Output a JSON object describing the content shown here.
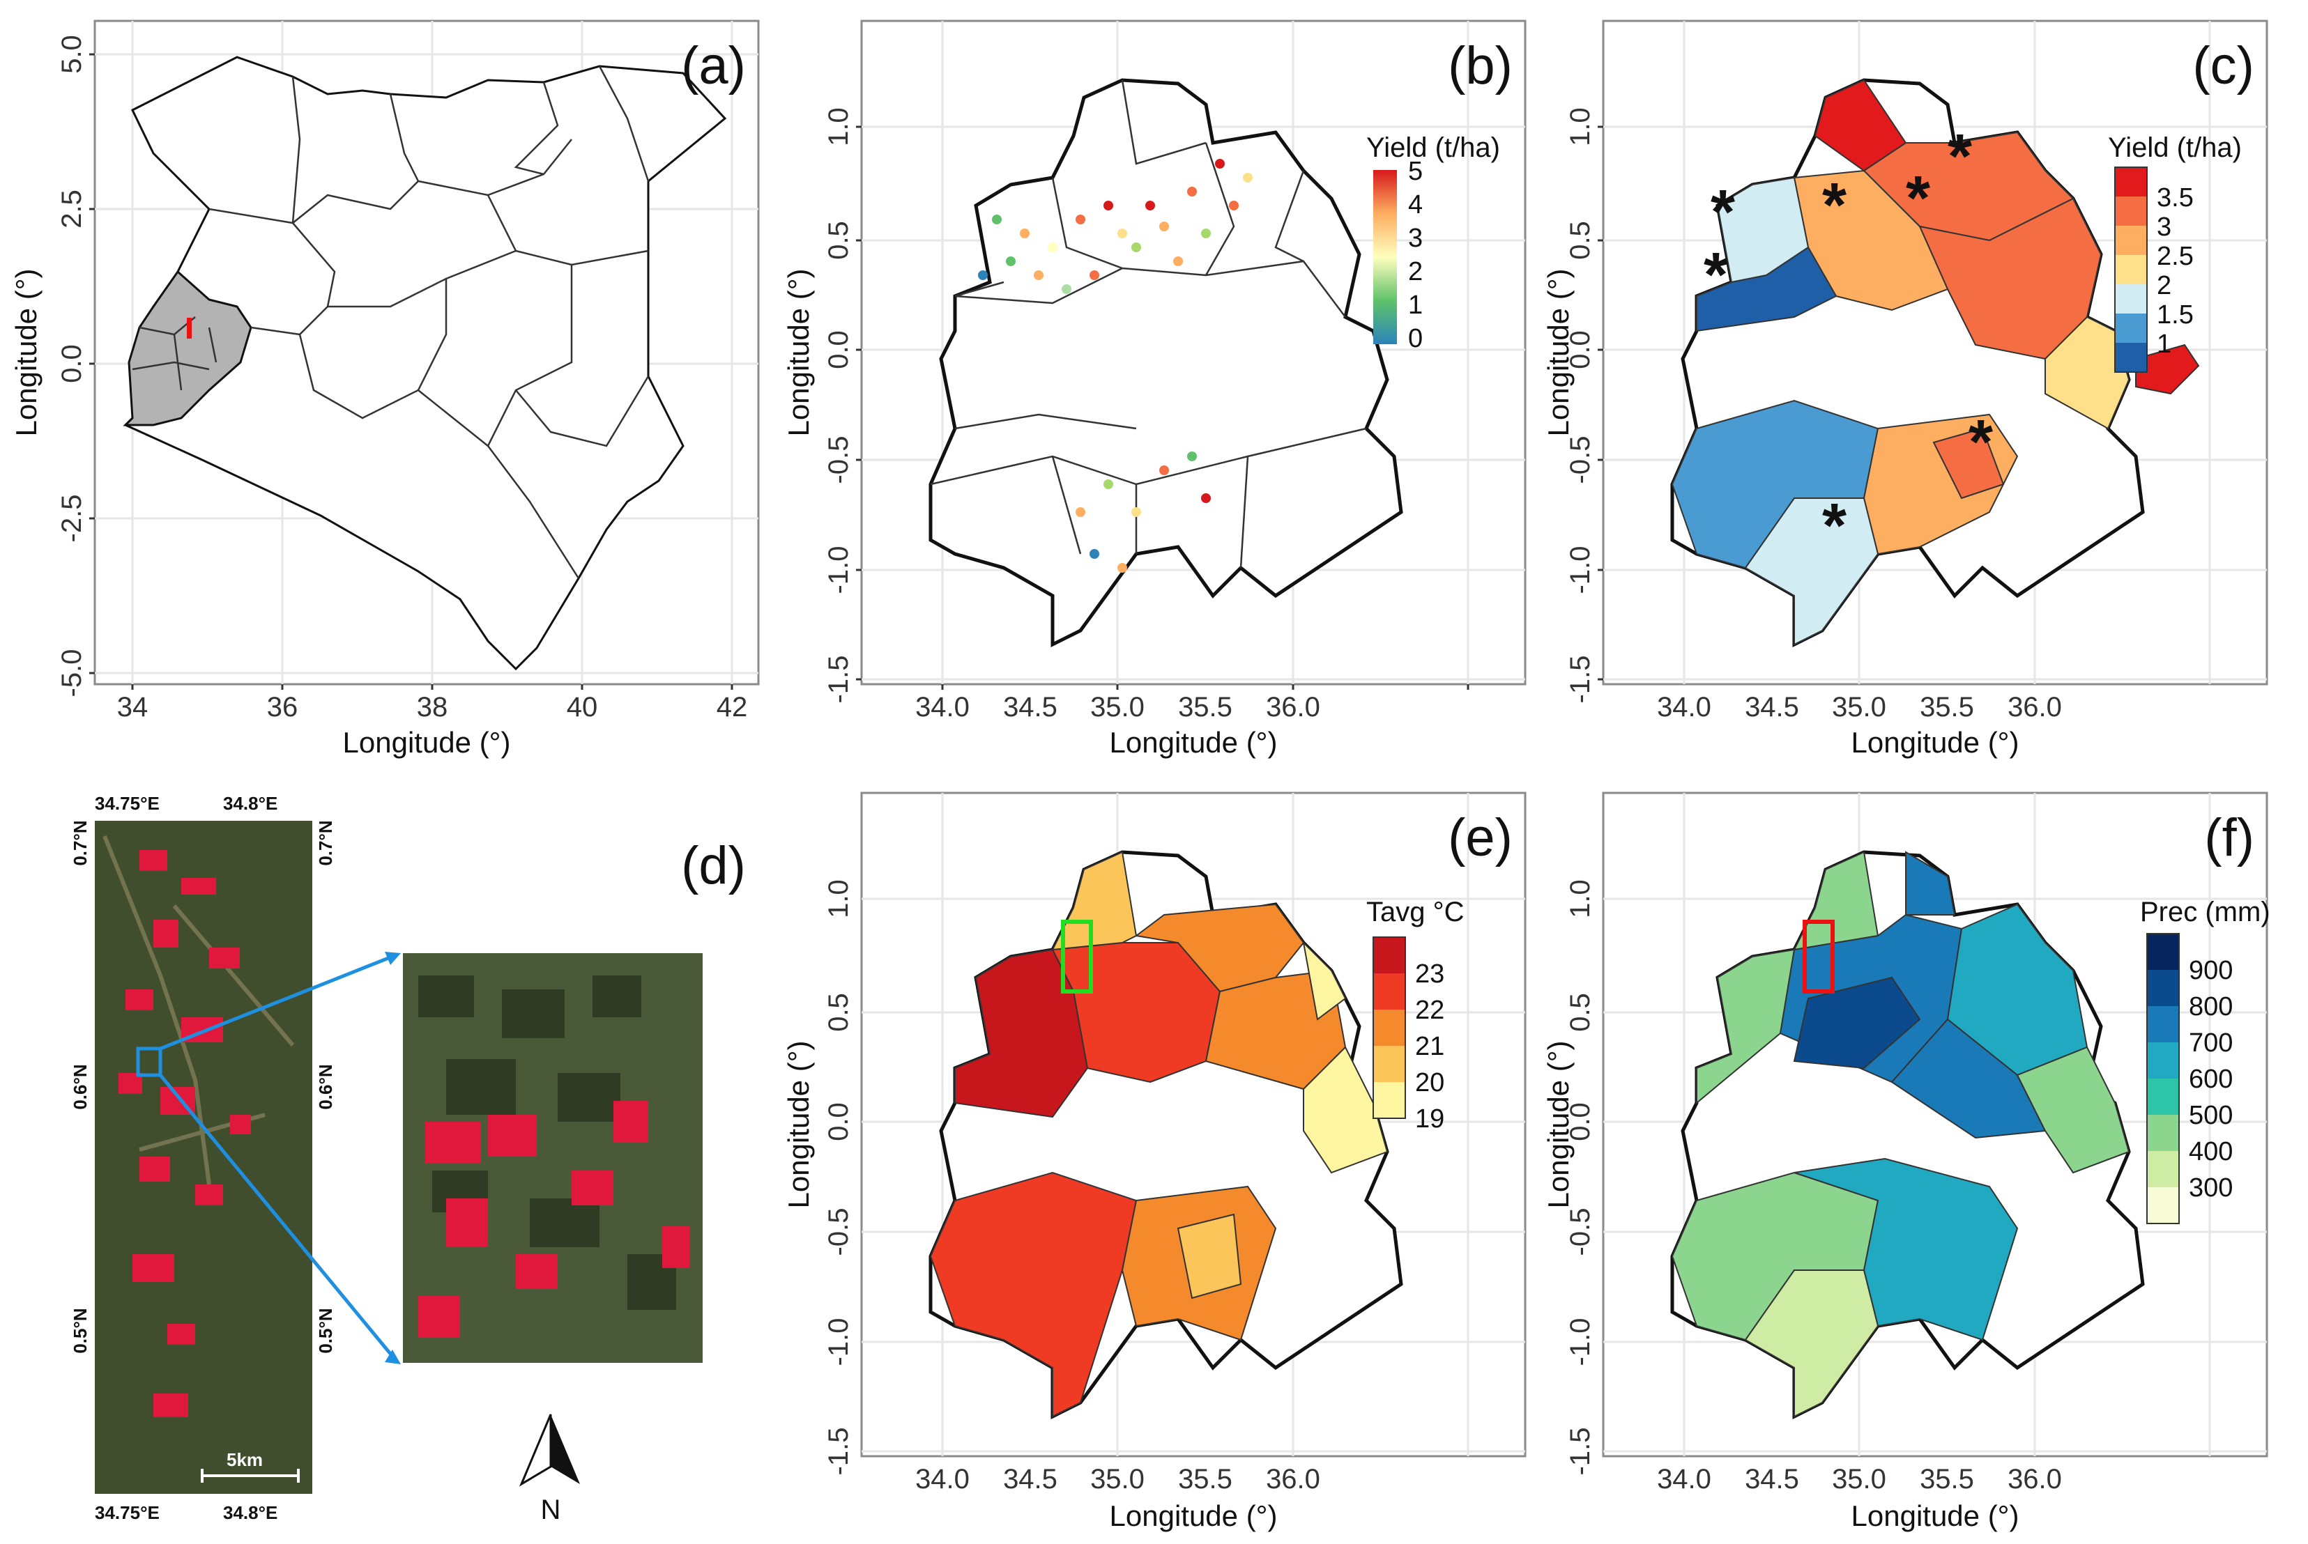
{
  "panels": {
    "a": {
      "label": "(a)",
      "xlabel": "Longitude (°)",
      "ylabel": "Longitude (°)",
      "xticks": [
        "34",
        "36",
        "38",
        "40",
        "42"
      ],
      "yticks": [
        "5.0",
        "2.5",
        "0.0",
        "-2.5",
        "-5.0"
      ]
    },
    "b": {
      "label": "(b)",
      "xlabel": "Longitude (°)",
      "ylabel": "Longitude (°)",
      "xticks": [
        "34.0",
        "34.5",
        "35.0",
        "35.5",
        "36.0"
      ],
      "yticks": [
        "1.0",
        "0.5",
        "0.0",
        "-0.5",
        "-1.0",
        "-1.5"
      ],
      "legend": {
        "title": "Yield (t/ha)",
        "labels": [
          "5",
          "4",
          "3",
          "2",
          "1",
          "0"
        ]
      }
    },
    "c": {
      "label": "(c)",
      "xlabel": "Longitude (°)",
      "ylabel": "Longitude (°)",
      "xticks": [
        "34.0",
        "34.5",
        "35.0",
        "35.5",
        "36.0"
      ],
      "yticks": [
        "1.0",
        "0.5",
        "0.0",
        "-0.5",
        "-1.0",
        "-1.5"
      ],
      "legend": {
        "title": "Yield (t/ha)",
        "labels": [
          "3.5",
          "3",
          "2.5",
          "2",
          "1.5",
          "1"
        ],
        "colors": [
          "#e31a1c",
          "#f46d43",
          "#fdae61",
          "#fee08b",
          "#d1ecf3",
          "#4a9bd1",
          "#1f5fa8"
        ]
      }
    },
    "d": {
      "label": "(d)",
      "top_labels": [
        "34.75°E",
        "34.8°E"
      ],
      "bottom_labels": [
        "34.75°E",
        "34.8°E"
      ],
      "left_labels": [
        "0.7°N",
        "0.6°N",
        "0.5°N"
      ],
      "right_labels": [
        "0.7°N",
        "0.6°N",
        "0.5°N"
      ],
      "scalebar": "5km",
      "north": "N"
    },
    "e": {
      "label": "(e)",
      "xlabel": "Longitude (°)",
      "ylabel": "Longitude (°)",
      "xticks": [
        "34.0",
        "34.5",
        "35.0",
        "35.5",
        "36.0"
      ],
      "yticks": [
        "1.0",
        "0.5",
        "0.0",
        "-0.5",
        "-1.0",
        "-1.5"
      ],
      "legend": {
        "title": "Tavg °C",
        "labels": [
          "23",
          "22",
          "21",
          "20",
          "19"
        ],
        "colors": [
          "#c8161d",
          "#ef3b24",
          "#f58a2c",
          "#fbc55a",
          "#fdf5a0"
        ]
      }
    },
    "f": {
      "label": "(f)",
      "xlabel": "Longitude (°)",
      "ylabel": "Longitude (°)",
      "xticks": [
        "34.0",
        "34.5",
        "35.0",
        "35.5",
        "36.0"
      ],
      "yticks": [
        "1.0",
        "0.5",
        "0.0",
        "-0.5",
        "-1.0",
        "-1.5"
      ],
      "legend": {
        "title": "Prec (mm)",
        "labels": [
          "900",
          "800",
          "700",
          "600",
          "500",
          "400",
          "300"
        ],
        "colors": [
          "#08255f",
          "#0b4a8c",
          "#1a7ab8",
          "#20a9c0",
          "#2ec4aa",
          "#8bd58e",
          "#cfeca4",
          "#f7fbd6"
        ]
      }
    }
  },
  "colors": {
    "red_mask": "#e0193c",
    "frame": "#8a8a8a",
    "box_d": "#1f8fe0",
    "box_e": "#22dd22",
    "box_f": "#ee1111"
  }
}
